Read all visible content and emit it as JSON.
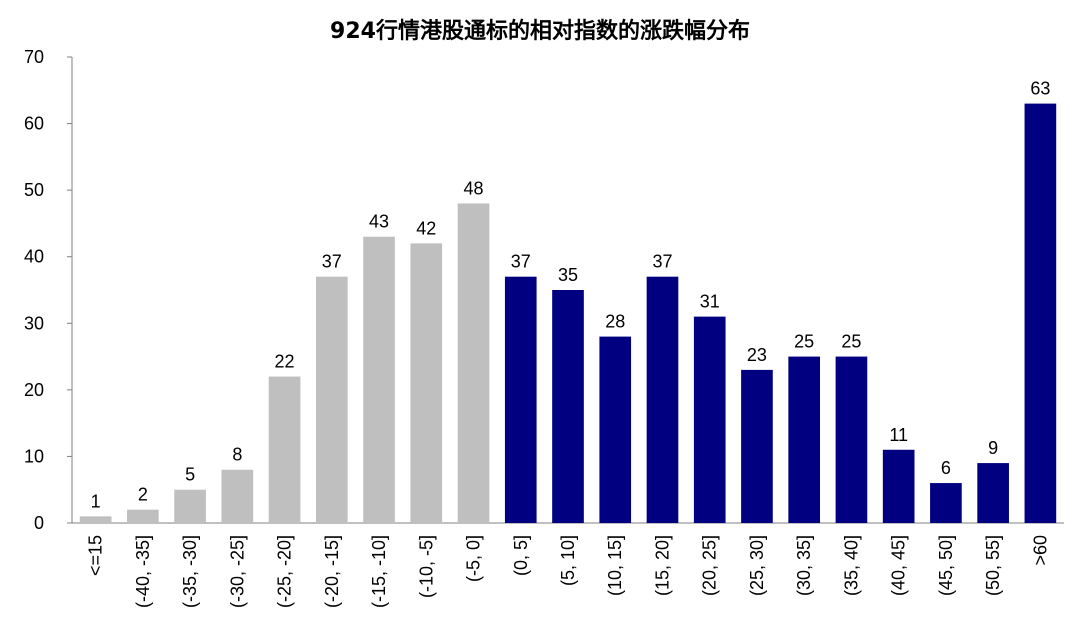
{
  "chart_data": {
    "type": "bar",
    "title": "924行情港股通标的相对指数的涨跌幅分布",
    "xlabel": "",
    "ylabel": "",
    "ylim": [
      0,
      70
    ],
    "yticks": [
      0,
      10,
      20,
      30,
      40,
      50,
      60,
      70
    ],
    "grid": false,
    "legend": "none",
    "categories": [
      "<=15",
      "(-40, -35]",
      "(-35, -30]",
      "(-30, -25]",
      "(-25, -20]",
      "(-20, -15]",
      "(-15, -10]",
      "(-10, -5]",
      "(-5, 0]",
      "(0, 5]",
      "(5, 10]",
      "(10, 15]",
      "(15, 20]",
      "(20, 25]",
      "(25, 30]",
      "(30, 35]",
      "(35, 40]",
      "(40, 45]",
      "(45, 50]",
      "(50, 55]",
      ">60"
    ],
    "values": [
      1,
      2,
      5,
      8,
      22,
      37,
      43,
      42,
      48,
      37,
      35,
      28,
      37,
      31,
      23,
      25,
      25,
      11,
      6,
      9,
      63
    ],
    "colors": {
      "negative": "#bfbfbf",
      "positive": "#000080"
    },
    "negative_count": 9
  }
}
